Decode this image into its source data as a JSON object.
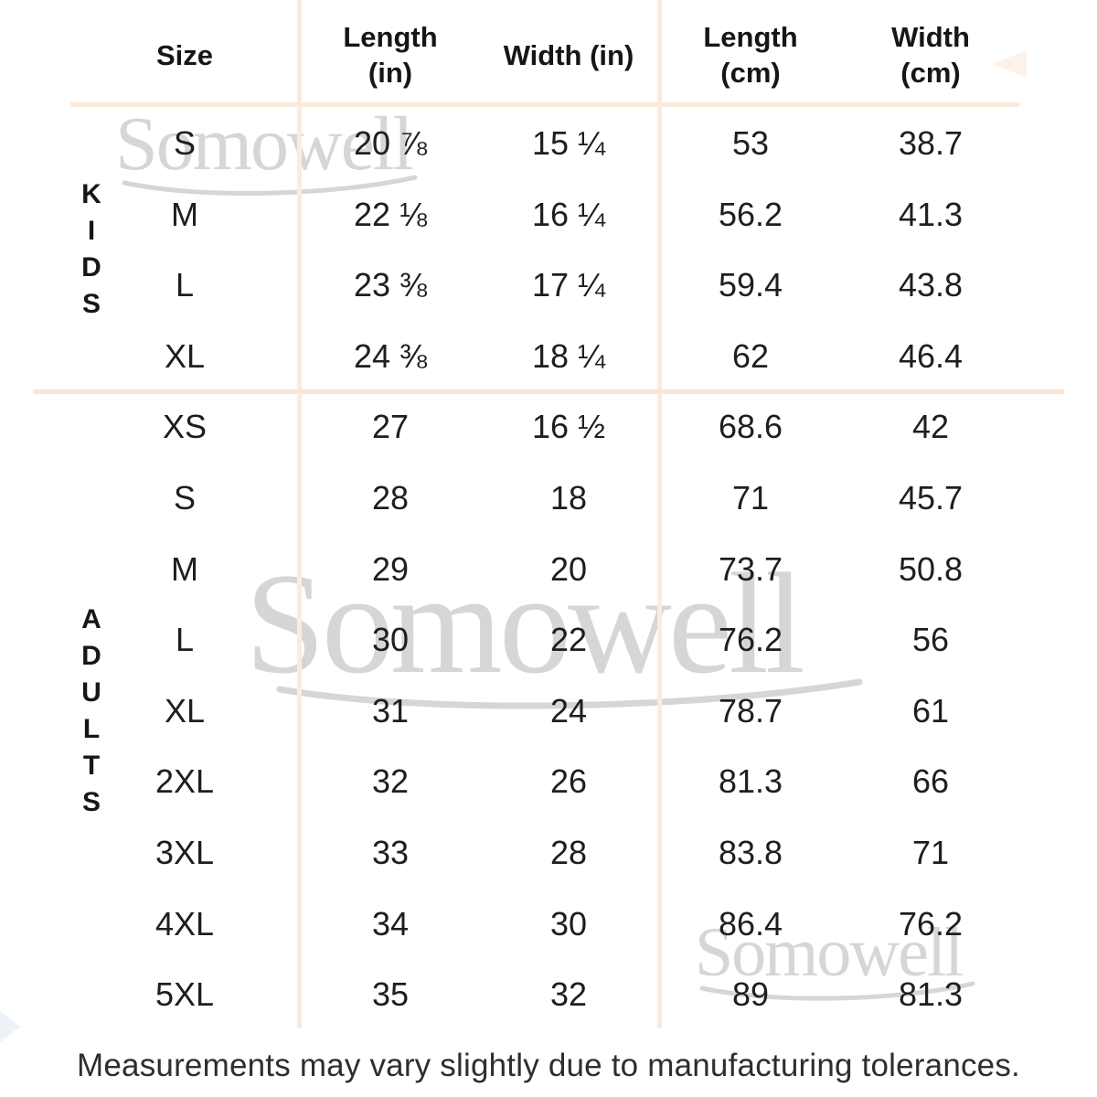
{
  "chart_data": {
    "type": "table",
    "columns": [
      "Size",
      "Length\n(in)",
      "Width (in)",
      "Length\n(cm)",
      "Width\n(cm)"
    ],
    "column_keys": [
      "size",
      "length_in",
      "width_in",
      "length_cm",
      "width_cm"
    ],
    "sections": [
      {
        "label": "KIDS",
        "rows": [
          {
            "size": "S",
            "length_in": "20 ⅞",
            "width_in": "15 ¼",
            "length_cm": "53",
            "width_cm": "38.7"
          },
          {
            "size": "M",
            "length_in": "22 ⅛",
            "width_in": "16 ¼",
            "length_cm": "56.2",
            "width_cm": "41.3"
          },
          {
            "size": "L",
            "length_in": "23 ⅜",
            "width_in": "17 ¼",
            "length_cm": "59.4",
            "width_cm": "43.8"
          },
          {
            "size": "XL",
            "length_in": "24 ⅜",
            "width_in": "18 ¼",
            "length_cm": "62",
            "width_cm": "46.4"
          }
        ]
      },
      {
        "label": "ADULTS",
        "rows": [
          {
            "size": "XS",
            "length_in": "27",
            "width_in": "16 ½",
            "length_cm": "68.6",
            "width_cm": "42"
          },
          {
            "size": "S",
            "length_in": "28",
            "width_in": "18",
            "length_cm": "71",
            "width_cm": "45.7"
          },
          {
            "size": "M",
            "length_in": "29",
            "width_in": "20",
            "length_cm": "73.7",
            "width_cm": "50.8"
          },
          {
            "size": "L",
            "length_in": "30",
            "width_in": "22",
            "length_cm": "76.2",
            "width_cm": "56"
          },
          {
            "size": "XL",
            "length_in": "31",
            "width_in": "24",
            "length_cm": "78.7",
            "width_cm": "61"
          },
          {
            "size": "2XL",
            "length_in": "32",
            "width_in": "26",
            "length_cm": "81.3",
            "width_cm": "66"
          },
          {
            "size": "3XL",
            "length_in": "33",
            "width_in": "28",
            "length_cm": "83.8",
            "width_cm": "71"
          },
          {
            "size": "4XL",
            "length_in": "34",
            "width_in": "30",
            "length_cm": "86.4",
            "width_cm": "76.2"
          },
          {
            "size": "5XL",
            "length_in": "35",
            "width_in": "32",
            "length_cm": "89",
            "width_cm": "81.3"
          }
        ]
      }
    ]
  },
  "watermark": {
    "text": "Somowell"
  },
  "footer": {
    "note": "Measurements may vary slightly due to manufacturing tolerances."
  },
  "colors": {
    "grid_vertical": "#f9ecdf",
    "grid_horizontal": "#f9e6d6",
    "text": "#1e1e1e",
    "watermark": "#d6d6d6",
    "background": "#ffffff"
  }
}
